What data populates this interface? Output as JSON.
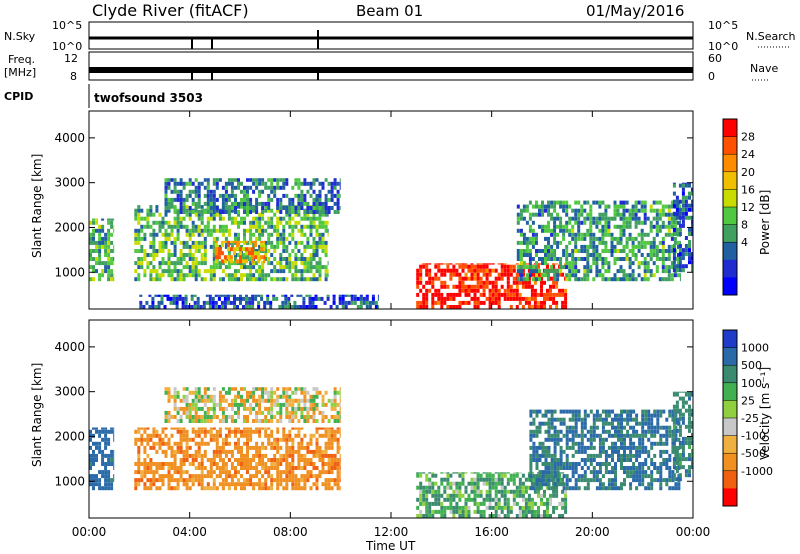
{
  "header": {
    "station": "Clyde River (fitACF)",
    "beam": "Beam 01",
    "date": "01/May/2016"
  },
  "strips": {
    "nsky_label": "N.Sky",
    "nsky_ticks": [
      "10^5",
      "10^0"
    ],
    "nsearch_label": "N.Search",
    "nsearch_ticks": [
      "10^5",
      "10^0"
    ],
    "freq_label": "Freq.",
    "freq_unit": "[MHz]",
    "freq_ticks": [
      "12",
      "8"
    ],
    "nave_label": "Nave",
    "nave_ticks": [
      "60",
      "0"
    ],
    "cpid_label": "CPID",
    "cpid_value": "twofsound 3503"
  },
  "panels": {
    "ylabel": "Slant Range [km]",
    "yticks": [
      "4000",
      "3000",
      "2000",
      "1000"
    ],
    "xlabel": "Time UT",
    "xticks": [
      "00:00",
      "04:00",
      "08:00",
      "12:00",
      "16:00",
      "20:00",
      "00:00"
    ]
  },
  "colorbars": {
    "power": {
      "label": "Power [dB]",
      "ticks": [
        "28",
        "24",
        "20",
        "16",
        "12",
        "8",
        "4"
      ],
      "colors": [
        "#ff0000",
        "#ff5000",
        "#ff8c00",
        "#f0c000",
        "#c8dc00",
        "#50c840",
        "#40a060",
        "#2060a0",
        "#1e2cd0",
        "#0000ff"
      ]
    },
    "velocity": {
      "label": "Velocity [m s⁻¹]",
      "ticks": [
        "1000",
        "500",
        "100",
        "25",
        "-25",
        "-100",
        "-500",
        "-1000"
      ],
      "colors": [
        "#1e3cc8",
        "#2a6aa8",
        "#3a8a70",
        "#40b050",
        "#90d040",
        "#c8c8c8",
        "#f0b040",
        "#f09020",
        "#f06010",
        "#ff0000"
      ]
    }
  },
  "chart_data": [
    {
      "type": "heatmap",
      "title": "Power",
      "xlabel": "Time UT",
      "ylabel": "Slant Range [km]",
      "xlim": [
        "00:00",
        "24:00"
      ],
      "ylim": [
        180,
        4600
      ],
      "colorbar_label": "Power [dB]",
      "colorbar_ticks": [
        4,
        8,
        12,
        16,
        20,
        24,
        28
      ],
      "regions": [
        {
          "x": [
            0.0,
            1.0
          ],
          "y": [
            800,
            2200
          ],
          "value": 14
        },
        {
          "x": [
            1.8,
            9.5
          ],
          "y": [
            800,
            2500
          ],
          "value": 14
        },
        {
          "x": [
            3.0,
            10.0
          ],
          "y": [
            2300,
            3100
          ],
          "value": 10
        },
        {
          "x": [
            5.0,
            7.0
          ],
          "y": [
            1200,
            1700
          ],
          "value": 22
        },
        {
          "x": [
            2.0,
            11.5
          ],
          "y": [
            180,
            500
          ],
          "value": 8
        },
        {
          "x": [
            13.0,
            19.0
          ],
          "y": [
            180,
            1200
          ],
          "value": 30
        },
        {
          "x": [
            17.0,
            23.5
          ],
          "y": [
            800,
            2600
          ],
          "value": 12
        },
        {
          "x": [
            23.2,
            24.0
          ],
          "y": [
            1000,
            3000
          ],
          "value": 8
        }
      ]
    },
    {
      "type": "heatmap",
      "title": "Velocity",
      "xlabel": "Time UT",
      "ylabel": "Slant Range [km]",
      "xlim": [
        "00:00",
        "24:00"
      ],
      "ylim": [
        180,
        4600
      ],
      "colorbar_label": "Velocity [m s⁻¹]",
      "colorbar_ticks": [
        -1000,
        -500,
        -100,
        -25,
        25,
        100,
        500,
        1000
      ],
      "regions": [
        {
          "x": [
            0.0,
            1.0
          ],
          "y": [
            800,
            2200
          ],
          "value": 500
        },
        {
          "x": [
            1.8,
            10.0
          ],
          "y": [
            800,
            2200
          ],
          "value": -200
        },
        {
          "x": [
            3.0,
            10.0
          ],
          "y": [
            2300,
            3100
          ],
          "value": 0
        },
        {
          "x": [
            13.0,
            19.0
          ],
          "y": [
            180,
            1200
          ],
          "value": 150
        },
        {
          "x": [
            17.5,
            23.5
          ],
          "y": [
            800,
            2600
          ],
          "value": 400
        },
        {
          "x": [
            23.2,
            24.0
          ],
          "y": [
            1000,
            3000
          ],
          "value": 300
        }
      ]
    }
  ]
}
